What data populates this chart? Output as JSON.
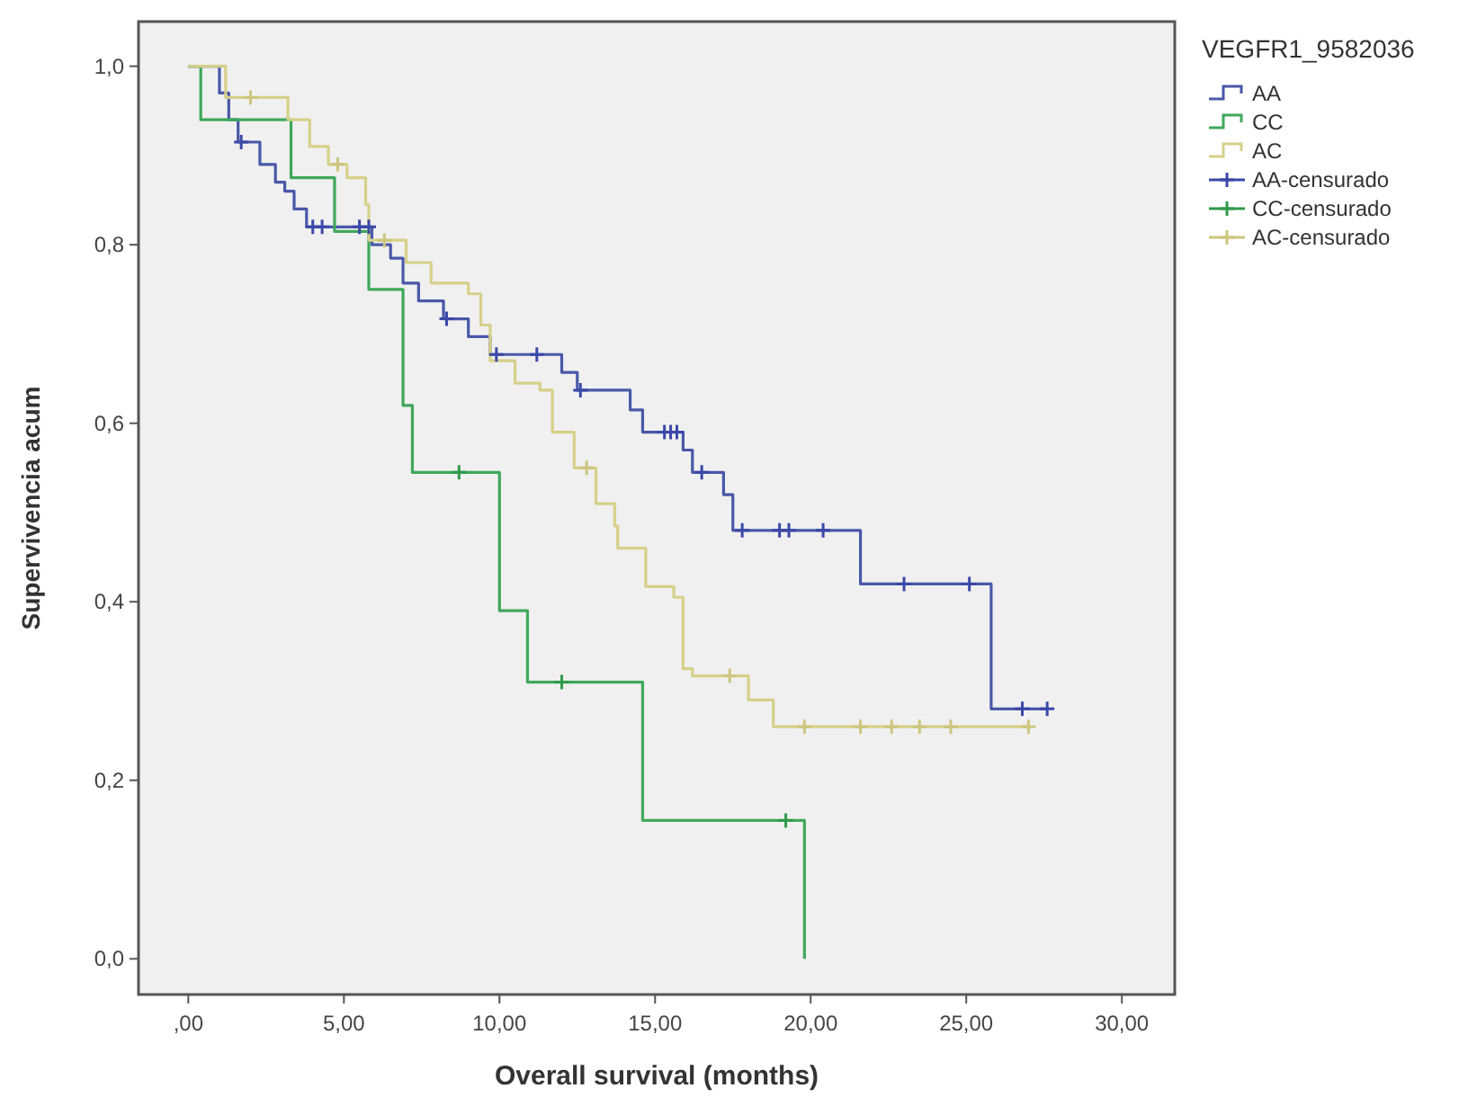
{
  "chart_data": {
    "type": "step",
    "xlabel": "Overall survival (months)",
    "ylabel": "Supervivencia acum",
    "legend_title": "VEGFR1_9582036",
    "legend": "right",
    "grid": false,
    "xlim": [
      -1.6,
      31.7
    ],
    "ylim": [
      -0.04,
      1.05
    ],
    "xticks": [
      {
        "value": 0,
        "label": ",00"
      },
      {
        "value": 5,
        "label": "5,00"
      },
      {
        "value": 10,
        "label": "10,00"
      },
      {
        "value": 15,
        "label": "15,00"
      },
      {
        "value": 20,
        "label": "20,00"
      },
      {
        "value": 25,
        "label": "25,00"
      },
      {
        "value": 30,
        "label": "30,00"
      }
    ],
    "yticks": [
      {
        "value": 0,
        "label": "0,0"
      },
      {
        "value": 0.2,
        "label": "0,2"
      },
      {
        "value": 0.4,
        "label": "0,4"
      },
      {
        "value": 0.6,
        "label": "0,6"
      },
      {
        "value": 0.8,
        "label": "0,8"
      },
      {
        "value": 1,
        "label": "1,0"
      }
    ],
    "series": [
      {
        "name": "AA",
        "color": "#4a58a8",
        "x": [
          0,
          1.0,
          1.3,
          1.6,
          2.3,
          2.8,
          3.1,
          3.4,
          3.8,
          5.9,
          6.5,
          6.9,
          7.4,
          8.2,
          9.0,
          9.7,
          12.0,
          12.5,
          14.2,
          14.6,
          15.9,
          16.2,
          17.2,
          17.5,
          21.6,
          25.8,
          27.6
        ],
        "values": [
          1,
          0.97,
          0.94,
          0.915,
          0.89,
          0.87,
          0.86,
          0.84,
          0.82,
          0.8,
          0.785,
          0.757,
          0.737,
          0.717,
          0.697,
          0.677,
          0.657,
          0.637,
          0.615,
          0.59,
          0.57,
          0.545,
          0.52,
          0.48,
          0.42,
          0.28,
          0.28
        ]
      },
      {
        "name": "CC",
        "color": "#3fa85a",
        "x": [
          0,
          0.4,
          3.3,
          4.7,
          5.8,
          6.9,
          7.2,
          10.0,
          10.9,
          14.6,
          19.8
        ],
        "values": [
          1,
          0.94,
          0.875,
          0.815,
          0.75,
          0.62,
          0.545,
          0.39,
          0.31,
          0.155,
          0
        ]
      },
      {
        "name": "AC",
        "color": "#d6d08a",
        "x": [
          0,
          1.2,
          3.2,
          3.9,
          4.5,
          5.1,
          5.7,
          5.8,
          7.0,
          7.8,
          9.0,
          9.4,
          9.7,
          10.5,
          11.3,
          11.7,
          12.4,
          13.1,
          13.7,
          13.8,
          14.7,
          15.6,
          15.9,
          16.2,
          18.0,
          18.8,
          27.0
        ],
        "values": [
          1,
          0.965,
          0.94,
          0.91,
          0.89,
          0.875,
          0.845,
          0.805,
          0.78,
          0.757,
          0.745,
          0.71,
          0.67,
          0.645,
          0.637,
          0.59,
          0.55,
          0.51,
          0.485,
          0.46,
          0.417,
          0.405,
          0.325,
          0.317,
          0.29,
          0.26,
          0.26
        ]
      },
      {
        "name": "AA-censurado",
        "type": "scatter",
        "marker": "cross",
        "color": "#3a48a8",
        "x": [
          1.7,
          4.0,
          4.3,
          5.5,
          5.8,
          8.3,
          9.9,
          11.2,
          12.6,
          15.3,
          15.5,
          15.7,
          16.5,
          17.8,
          19.0,
          19.3,
          20.4,
          23.0,
          25.1,
          26.8,
          27.6
        ],
        "values": [
          0.915,
          0.82,
          0.82,
          0.82,
          0.82,
          0.717,
          0.677,
          0.677,
          0.637,
          0.59,
          0.59,
          0.59,
          0.545,
          0.48,
          0.48,
          0.48,
          0.48,
          0.42,
          0.42,
          0.28,
          0.28
        ]
      },
      {
        "name": "CC-censurado",
        "type": "scatter",
        "marker": "cross",
        "color": "#2f9a4a",
        "x": [
          8.7,
          12.0,
          19.2
        ],
        "values": [
          0.545,
          0.31,
          0.155
        ]
      },
      {
        "name": "AC-censurado",
        "type": "scatter",
        "marker": "cross",
        "color": "#ccc67e",
        "x": [
          2.0,
          4.8,
          6.3,
          12.8,
          17.4,
          19.8,
          21.6,
          22.6,
          23.5,
          24.5,
          27.0
        ],
        "values": [
          0.965,
          0.89,
          0.805,
          0.55,
          0.317,
          0.26,
          0.26,
          0.26,
          0.26,
          0.26,
          0.26
        ]
      }
    ]
  }
}
